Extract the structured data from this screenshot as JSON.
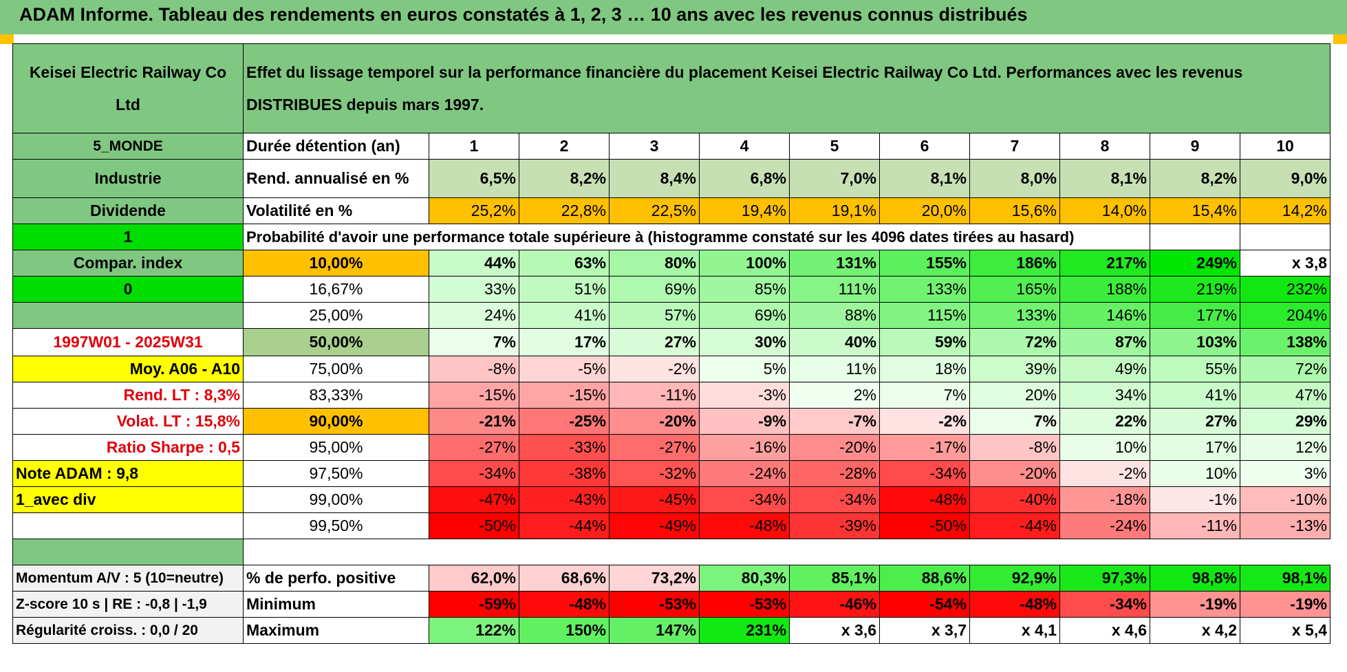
{
  "title": "ADAM Informe. Tableau des rendements en euros constatés à 1, 2, 3 … 10 ans avec les revenus connus distribués",
  "colors": {
    "green_header": "#80c882",
    "orange": "#ffc000",
    "yellow": "#ffff00",
    "bright_green": "#00dd00",
    "red_text": "#e0000c"
  },
  "header": {
    "left": "Keisei Electric Railway Co Ltd",
    "right": "Effet du lissage temporel sur la performance financière du placement Keisei Electric Railway Co Ltd. Performances avec les revenus DISTRIBUES depuis mars 1997."
  },
  "left_labels": {
    "monde": "5_MONDE",
    "industrie": "Industrie",
    "dividende": "Dividende",
    "one": "1",
    "compar": "Compar. index",
    "zero": "0",
    "period": "1997W01 - 2025W31",
    "moy": "Moy. A06 - A10",
    "rend_lt": "Rend. LT :    8,3%",
    "volat_lt": "Volat. LT :    15,8%",
    "sharpe": "Ratio Sharpe :     0,5",
    "note": "Note ADAM : 9,8",
    "avec_div": "1_avec div",
    "momentum": "Momentum A/V : 5 (10=neutre)",
    "zscore": "Z-score 10 s | RE : -0,8 | -1,9",
    "regularite": "Régularité croiss. : 0,0 / 20"
  },
  "row_labels": {
    "duree": "Durée détention (an)",
    "rend": "Rend. annualisé en %",
    "vol": "Volatilité en %",
    "proba": "Probabilité d'avoir une performance totale supérieure à (histogramme constaté sur les 4096 dates tirées au hasard)",
    "positive": "% de perfo. positive",
    "minimum": "Minimum",
    "maximum": "Maximum"
  },
  "years": [
    "1",
    "2",
    "3",
    "4",
    "5",
    "6",
    "7",
    "8",
    "9",
    "10"
  ],
  "rend_annualise": [
    "6,5%",
    "8,2%",
    "8,4%",
    "6,8%",
    "7,0%",
    "8,1%",
    "8,0%",
    "8,1%",
    "8,2%",
    "9,0%"
  ],
  "volatilite": [
    "25,2%",
    "22,8%",
    "22,5%",
    "19,4%",
    "19,1%",
    "20,0%",
    "15,6%",
    "14,0%",
    "15,4%",
    "14,2%"
  ],
  "quantiles": [
    {
      "p": "10,00%",
      "values": [
        "44%",
        "63%",
        "80%",
        "100%",
        "131%",
        "155%",
        "186%",
        "217%",
        "249%",
        "x 3,8"
      ]
    },
    {
      "p": "16,67%",
      "values": [
        "33%",
        "51%",
        "69%",
        "85%",
        "111%",
        "133%",
        "165%",
        "188%",
        "219%",
        "232%"
      ]
    },
    {
      "p": "25,00%",
      "values": [
        "24%",
        "41%",
        "57%",
        "69%",
        "88%",
        "115%",
        "133%",
        "146%",
        "177%",
        "204%"
      ]
    },
    {
      "p": "50,00%",
      "values": [
        "7%",
        "17%",
        "27%",
        "30%",
        "40%",
        "59%",
        "72%",
        "87%",
        "103%",
        "138%"
      ]
    },
    {
      "p": "75,00%",
      "values": [
        "-8%",
        "-5%",
        "-2%",
        "5%",
        "11%",
        "18%",
        "39%",
        "49%",
        "55%",
        "72%"
      ]
    },
    {
      "p": "83,33%",
      "values": [
        "-15%",
        "-15%",
        "-11%",
        "-3%",
        "2%",
        "7%",
        "20%",
        "34%",
        "41%",
        "47%"
      ]
    },
    {
      "p": "90,00%",
      "values": [
        "-21%",
        "-25%",
        "-20%",
        "-9%",
        "-7%",
        "-2%",
        "7%",
        "22%",
        "27%",
        "29%"
      ]
    },
    {
      "p": "95,00%",
      "values": [
        "-27%",
        "-33%",
        "-27%",
        "-16%",
        "-20%",
        "-17%",
        "-8%",
        "10%",
        "17%",
        "12%"
      ]
    },
    {
      "p": "97,50%",
      "values": [
        "-34%",
        "-38%",
        "-32%",
        "-24%",
        "-28%",
        "-34%",
        "-20%",
        "-2%",
        "10%",
        "3%"
      ]
    },
    {
      "p": "99,00%",
      "values": [
        "-47%",
        "-43%",
        "-45%",
        "-34%",
        "-34%",
        "-48%",
        "-40%",
        "-18%",
        "-1%",
        "-10%"
      ]
    },
    {
      "p": "99,50%",
      "values": [
        "-50%",
        "-44%",
        "-49%",
        "-48%",
        "-39%",
        "-50%",
        "-44%",
        "-24%",
        "-11%",
        "-13%"
      ]
    }
  ],
  "perf_positive": [
    "62,0%",
    "68,6%",
    "73,2%",
    "80,3%",
    "85,1%",
    "88,6%",
    "92,9%",
    "97,3%",
    "98,8%",
    "98,1%"
  ],
  "minimum": [
    "-59%",
    "-48%",
    "-53%",
    "-53%",
    "-46%",
    "-54%",
    "-48%",
    "-34%",
    "-19%",
    "-19%"
  ],
  "maximum": [
    "122%",
    "150%",
    "147%",
    "231%",
    "x 3,6",
    "x 3,7",
    "x 4,1",
    "x 4,6",
    "x 4,2",
    "x 5,4"
  ]
}
